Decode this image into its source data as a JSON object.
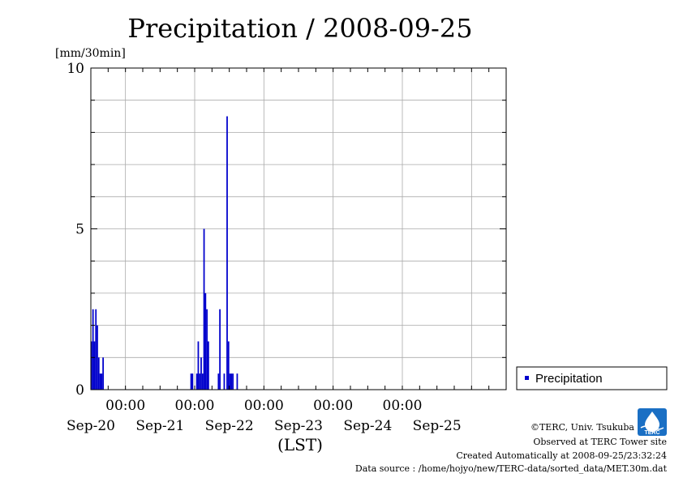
{
  "chart_data": {
    "type": "bar",
    "title": "Precipitation / 2008-09-25",
    "ylabel": "[mm/30min]",
    "xlabel": "(LST)",
    "ylim": [
      0,
      10
    ],
    "xlim": [
      "2008-09-19T12:00",
      "2008-09-25T12:00"
    ],
    "y_ticks": [
      "0",
      "5",
      "10"
    ],
    "x_ticks": [
      {
        "time": "2008-09-20T00:00",
        "time_label": "00:00",
        "date_label": "Sep-20"
      },
      {
        "time": "2008-09-21T00:00",
        "time_label": "00:00",
        "date_label": "Sep-21"
      },
      {
        "time": "2008-09-22T00:00",
        "time_label": "00:00",
        "date_label": "Sep-22"
      },
      {
        "time": "2008-09-23T00:00",
        "time_label": "00:00",
        "date_label": "Sep-23"
      },
      {
        "time": "2008-09-24T00:00",
        "time_label": "00:00",
        "date_label": "Sep-24"
      },
      {
        "time": "2008-09-25T00:00",
        "time_label": "",
        "date_label": "Sep-25"
      }
    ],
    "grid": true,
    "legend_position": "right",
    "series": [
      {
        "name": "Precipitation",
        "color": "#0000cc",
        "points": [
          {
            "x": "2008-09-19T12:00",
            "y": 1.5
          },
          {
            "x": "2008-09-19T12:30",
            "y": 2.5
          },
          {
            "x": "2008-09-19T13:00",
            "y": 1.5
          },
          {
            "x": "2008-09-19T13:30",
            "y": 2.5
          },
          {
            "x": "2008-09-19T14:00",
            "y": 2.0
          },
          {
            "x": "2008-09-19T14:30",
            "y": 1.0
          },
          {
            "x": "2008-09-19T15:00",
            "y": 0.5
          },
          {
            "x": "2008-09-19T15:30",
            "y": 0.5
          },
          {
            "x": "2008-09-19T16:00",
            "y": 1.0
          },
          {
            "x": "2008-09-20T22:30",
            "y": 0.5
          },
          {
            "x": "2008-09-20T23:00",
            "y": 0.5
          },
          {
            "x": "2008-09-21T00:30",
            "y": 0.5
          },
          {
            "x": "2008-09-21T01:00",
            "y": 1.5
          },
          {
            "x": "2008-09-21T01:30",
            "y": 0.5
          },
          {
            "x": "2008-09-21T02:00",
            "y": 1.0
          },
          {
            "x": "2008-09-21T02:30",
            "y": 0.5
          },
          {
            "x": "2008-09-21T03:00",
            "y": 5.0
          },
          {
            "x": "2008-09-21T03:30",
            "y": 3.0
          },
          {
            "x": "2008-09-21T04:00",
            "y": 2.5
          },
          {
            "x": "2008-09-21T04:30",
            "y": 1.5
          },
          {
            "x": "2008-09-21T08:00",
            "y": 0.5
          },
          {
            "x": "2008-09-21T08:30",
            "y": 2.5
          },
          {
            "x": "2008-09-21T10:00",
            "y": 0.5
          },
          {
            "x": "2008-09-21T11:00",
            "y": 8.5
          },
          {
            "x": "2008-09-21T11:30",
            "y": 1.5
          },
          {
            "x": "2008-09-21T12:00",
            "y": 0.5
          },
          {
            "x": "2008-09-21T12:30",
            "y": 0.5
          },
          {
            "x": "2008-09-21T13:00",
            "y": 0.5
          },
          {
            "x": "2008-09-21T14:30",
            "y": 0.5
          }
        ]
      }
    ]
  },
  "legend": {
    "label": "Precipitation",
    "color": "#0000cc"
  },
  "credits": {
    "copyright": "©TERC, Univ. Tsukuba",
    "site": "Observed at TERC Tower site",
    "created": "Created Automatically at 2008-09-25/23:32:24",
    "source": "Data source : /home/hojyo/new/TERC-data/sorted_data/MET.30m.dat"
  },
  "logo": {
    "text": "TERC",
    "color": "#1a6fc4"
  }
}
